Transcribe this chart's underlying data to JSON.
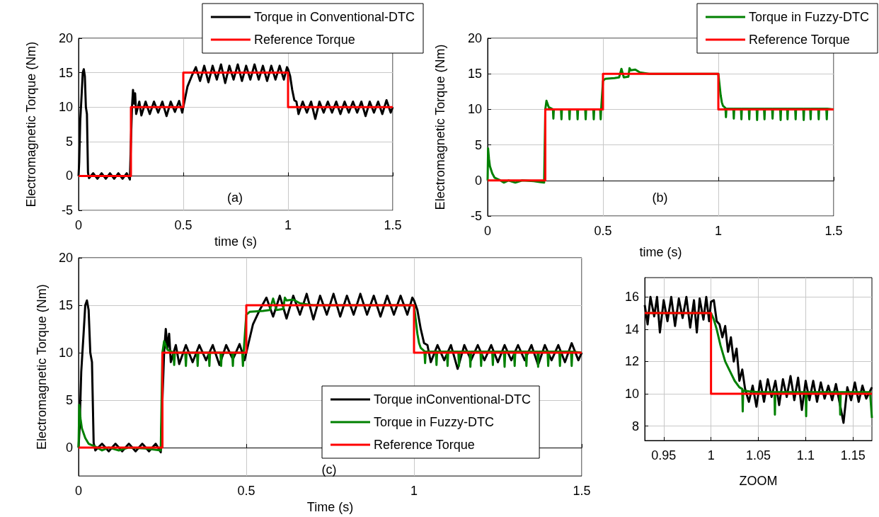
{
  "chart_data": [
    {
      "type": "line",
      "ylabel": "Electromagnetic Torque (Nm)",
      "xlabel": "time (s)",
      "annotations": [
        "(a)"
      ],
      "xlim": [
        0,
        1.5
      ],
      "ylim": [
        -5,
        20
      ],
      "xticks": [
        0,
        0.5,
        1,
        1.5
      ],
      "yticks": [
        -5,
        0,
        5,
        10,
        15,
        20
      ],
      "grid": true,
      "legend": "top right",
      "series": [
        {
          "name": "Torque in Conventional-DTC",
          "color": "#000000",
          "x": [
            0,
            0.003,
            0.008,
            0.015,
            0.02,
            0.025,
            0.03,
            0.035,
            0.04,
            0.045,
            0.05,
            0.07,
            0.09,
            0.11,
            0.13,
            0.15,
            0.17,
            0.19,
            0.21,
            0.23,
            0.245,
            0.25,
            0.255,
            0.26,
            0.265,
            0.27,
            0.275,
            0.29,
            0.3,
            0.32,
            0.34,
            0.36,
            0.38,
            0.4,
            0.42,
            0.44,
            0.46,
            0.48,
            0.495,
            0.5,
            0.52,
            0.54,
            0.56,
            0.58,
            0.6,
            0.62,
            0.64,
            0.66,
            0.68,
            0.7,
            0.72,
            0.74,
            0.76,
            0.78,
            0.8,
            0.82,
            0.84,
            0.86,
            0.88,
            0.9,
            0.92,
            0.94,
            0.96,
            0.98,
            0.995,
            1,
            1.01,
            1.02,
            1.03,
            1.04,
            1.05,
            1.07,
            1.09,
            1.11,
            1.13,
            1.15,
            1.17,
            1.19,
            1.21,
            1.23,
            1.25,
            1.27,
            1.29,
            1.31,
            1.33,
            1.35,
            1.37,
            1.39,
            1.41,
            1.43,
            1.45,
            1.47,
            1.49,
            1.5
          ],
          "values": [
            0,
            2,
            8,
            12,
            15,
            15.5,
            14.5,
            10,
            9,
            0.5,
            -0.3,
            0.4,
            -0.4,
            0.4,
            -0.4,
            0.4,
            -0.4,
            0.4,
            -0.4,
            0.4,
            -0.5,
            5,
            10,
            12.5,
            10.5,
            12,
            9,
            10.8,
            8.8,
            10.8,
            9,
            10.8,
            9.2,
            10.8,
            8.7,
            10.8,
            9.3,
            10.9,
            9.2,
            10,
            13,
            14.5,
            15.8,
            13.8,
            16,
            13.6,
            16,
            14,
            16.2,
            13.5,
            16,
            14,
            16.2,
            13.8,
            16,
            14,
            16.2,
            14,
            16,
            13.8,
            16,
            14,
            16,
            14,
            15.8,
            15.5,
            14.5,
            12.5,
            11,
            10.8,
            9,
            10.8,
            9.2,
            10.8,
            8.3,
            10.8,
            9.2,
            10.8,
            9.2,
            10.8,
            9,
            10.8,
            9.2,
            10.8,
            9.2,
            10.8,
            8.7,
            10.8,
            9.2,
            10.8,
            9,
            11,
            9.2,
            10
          ]
        },
        {
          "name": "Reference Torque",
          "color": "#ff0000",
          "x": [
            0,
            0.25,
            0.25,
            0.5,
            0.5,
            1,
            1,
            1.5
          ],
          "values": [
            0,
            0,
            10,
            10,
            15,
            15,
            10,
            10
          ]
        }
      ]
    },
    {
      "type": "line",
      "ylabel": "Electromagnetic Torque (Nm)",
      "xlabel": "time (s)",
      "annotations": [
        "(b)"
      ],
      "xlim": [
        0,
        1.5
      ],
      "ylim": [
        -5,
        20
      ],
      "xticks": [
        0,
        0.5,
        1,
        1.5
      ],
      "yticks": [
        -5,
        0,
        5,
        10,
        15,
        20
      ],
      "grid": true,
      "legend": "top right",
      "series": [
        {
          "name": "Torque in Fuzzy-DTC",
          "color": "#008000",
          "x": [
            0,
            0.002,
            0.006,
            0.01,
            0.02,
            0.03,
            0.05,
            0.07,
            0.09,
            0.12,
            0.15,
            0.2,
            0.245,
            0.25,
            0.255,
            0.265,
            0.283,
            0.285,
            0.287,
            0.318,
            0.32,
            0.322,
            0.353,
            0.355,
            0.357,
            0.388,
            0.39,
            0.392,
            0.423,
            0.425,
            0.427,
            0.458,
            0.46,
            0.462,
            0.488,
            0.49,
            0.492,
            0.5,
            0.51,
            0.55,
            0.57,
            0.58,
            0.59,
            0.61,
            0.615,
            0.62,
            0.64,
            0.66,
            0.68,
            0.7,
            1,
            1.005,
            1.01,
            1.015,
            1.02,
            1.03,
            1.031,
            1.033,
            1.035,
            1.065,
            1.067,
            1.069,
            1.098,
            1.1,
            1.102,
            1.132,
            1.134,
            1.136,
            1.166,
            1.168,
            1.17,
            1.198,
            1.2,
            1.202,
            1.233,
            1.235,
            1.237,
            1.268,
            1.27,
            1.272,
            1.298,
            1.3,
            1.302,
            1.333,
            1.335,
            1.337,
            1.368,
            1.37,
            1.372,
            1.398,
            1.4,
            1.402,
            1.433,
            1.435,
            1.437,
            1.468,
            1.47,
            1.472,
            1.5
          ],
          "values": [
            0,
            4.5,
            3,
            2,
            1,
            0.4,
            0.1,
            -0.3,
            0,
            -0.3,
            0,
            -0.1,
            -0.3,
            10,
            11.2,
            10.3,
            10,
            8.7,
            10,
            10,
            8.6,
            10,
            10,
            8.6,
            10,
            10,
            8.6,
            10,
            10,
            8.6,
            10,
            10,
            8.6,
            10,
            10,
            8.6,
            10,
            14,
            14.3,
            14.4,
            14.5,
            15.7,
            14.5,
            14.6,
            15.8,
            15.5,
            15.6,
            15.2,
            15.1,
            15,
            15,
            13.5,
            12,
            11,
            10.5,
            10.2,
            10.1,
            8.9,
            10.1,
            10.1,
            8.7,
            10.1,
            10.1,
            8.6,
            10.1,
            10.1,
            8.6,
            10.1,
            10.1,
            8.5,
            10.1,
            10.1,
            8.6,
            10.1,
            10.1,
            8.7,
            10.1,
            10.1,
            8.5,
            10.1,
            10.1,
            8.6,
            10.1,
            10.1,
            8.6,
            10.1,
            10.1,
            8.5,
            10.1,
            10.1,
            8.6,
            10.1,
            10.1,
            8.6,
            10.1,
            10.1,
            8.6,
            10.1,
            10
          ]
        },
        {
          "name": "Reference Torque",
          "color": "#ff0000",
          "x": [
            0,
            0.25,
            0.25,
            0.5,
            0.5,
            1,
            1,
            1.5
          ],
          "values": [
            0,
            0,
            10,
            10,
            15,
            15,
            10,
            10
          ]
        }
      ]
    },
    {
      "type": "line",
      "ylabel": "Electromagnetic Torque (Nm)",
      "xlabel": "Time (s)",
      "annotations": [
        "(c)"
      ],
      "xlim": [
        0,
        1.5
      ],
      "ylim": [
        -3,
        20
      ],
      "xticks": [
        0,
        0.5,
        1,
        1.5
      ],
      "yticks": [
        0,
        5,
        10,
        15,
        20
      ],
      "grid": true,
      "legend": "bottom right",
      "series": [
        {
          "name": "Torque inConventional-DTC",
          "color": "#000000",
          "x": [
            0,
            0.003,
            0.008,
            0.015,
            0.02,
            0.025,
            0.03,
            0.035,
            0.04,
            0.045,
            0.05,
            0.07,
            0.09,
            0.11,
            0.13,
            0.15,
            0.17,
            0.19,
            0.21,
            0.23,
            0.245,
            0.25,
            0.255,
            0.26,
            0.265,
            0.27,
            0.275,
            0.29,
            0.3,
            0.32,
            0.34,
            0.36,
            0.38,
            0.4,
            0.42,
            0.44,
            0.46,
            0.48,
            0.495,
            0.5,
            0.52,
            0.54,
            0.56,
            0.58,
            0.6,
            0.62,
            0.64,
            0.66,
            0.68,
            0.7,
            0.72,
            0.74,
            0.76,
            0.78,
            0.8,
            0.82,
            0.84,
            0.86,
            0.88,
            0.9,
            0.92,
            0.94,
            0.96,
            0.98,
            0.995,
            1,
            1.01,
            1.02,
            1.03,
            1.04,
            1.05,
            1.07,
            1.09,
            1.11,
            1.13,
            1.15,
            1.17,
            1.19,
            1.21,
            1.23,
            1.25,
            1.27,
            1.29,
            1.31,
            1.33,
            1.35,
            1.37,
            1.39,
            1.41,
            1.43,
            1.45,
            1.47,
            1.49,
            1.5
          ],
          "values": [
            0,
            2,
            8,
            12,
            15,
            15.5,
            14.5,
            10,
            9,
            0.5,
            -0.3,
            0.4,
            -0.4,
            0.4,
            -0.4,
            0.4,
            -0.4,
            0.4,
            -0.4,
            0.4,
            -0.5,
            5,
            10,
            12.5,
            10.5,
            12,
            9,
            10.8,
            8.8,
            10.8,
            9,
            10.8,
            9.2,
            10.8,
            8.7,
            10.8,
            9.3,
            10.9,
            9.2,
            10,
            13,
            14.5,
            15.8,
            13.8,
            16,
            13.6,
            16,
            14,
            16.2,
            13.5,
            16,
            14,
            16.2,
            13.8,
            16,
            14,
            16.2,
            14,
            16,
            13.8,
            16,
            14,
            16,
            14,
            15.8,
            15.5,
            14.5,
            12.5,
            11,
            10.8,
            9,
            10.8,
            9.2,
            10.8,
            8.3,
            10.8,
            9.2,
            10.8,
            9.2,
            10.8,
            9,
            10.8,
            9.2,
            10.8,
            9.2,
            10.8,
            8.7,
            10.8,
            9.2,
            10.8,
            9,
            11,
            9.2,
            10
          ]
        },
        {
          "name": "Torque in Fuzzy-DTC",
          "color": "#008000",
          "x": [
            0,
            0.002,
            0.006,
            0.01,
            0.02,
            0.03,
            0.05,
            0.07,
            0.09,
            0.12,
            0.15,
            0.2,
            0.245,
            0.25,
            0.255,
            0.265,
            0.283,
            0.285,
            0.287,
            0.318,
            0.32,
            0.322,
            0.353,
            0.355,
            0.357,
            0.388,
            0.39,
            0.392,
            0.423,
            0.425,
            0.427,
            0.458,
            0.46,
            0.462,
            0.488,
            0.49,
            0.492,
            0.5,
            0.51,
            0.55,
            0.57,
            0.58,
            0.59,
            0.61,
            0.615,
            0.62,
            0.64,
            0.66,
            0.68,
            0.7,
            1,
            1.005,
            1.01,
            1.015,
            1.02,
            1.03,
            1.031,
            1.033,
            1.035,
            1.065,
            1.067,
            1.069,
            1.098,
            1.1,
            1.102,
            1.132,
            1.134,
            1.136,
            1.166,
            1.168,
            1.17,
            1.198,
            1.2,
            1.202,
            1.233,
            1.235,
            1.237,
            1.268,
            1.27,
            1.272,
            1.298,
            1.3,
            1.302,
            1.333,
            1.335,
            1.337,
            1.368,
            1.37,
            1.372,
            1.398,
            1.4,
            1.402,
            1.433,
            1.435,
            1.437,
            1.468,
            1.47,
            1.472,
            1.5
          ],
          "values": [
            0,
            4.5,
            3,
            2,
            1,
            0.4,
            0.1,
            -0.3,
            0,
            -0.3,
            0,
            -0.1,
            -0.3,
            10,
            11.2,
            10.3,
            10,
            8.7,
            10,
            10,
            8.6,
            10,
            10,
            8.6,
            10,
            10,
            8.6,
            10,
            10,
            8.6,
            10,
            10,
            8.6,
            10,
            10,
            8.6,
            10,
            14,
            14.3,
            14.4,
            14.5,
            15.7,
            14.5,
            14.6,
            15.8,
            15.5,
            15.6,
            15.2,
            15.1,
            15,
            15,
            13.5,
            12,
            11,
            10.5,
            10.2,
            10.1,
            8.9,
            10.1,
            10.1,
            8.7,
            10.1,
            10.1,
            8.6,
            10.1,
            10.1,
            8.6,
            10.1,
            10.1,
            8.5,
            10.1,
            10.1,
            8.6,
            10.1,
            10.1,
            8.7,
            10.1,
            10.1,
            8.5,
            10.1,
            10.1,
            8.6,
            10.1,
            10.1,
            8.6,
            10.1,
            10.1,
            8.5,
            10.1,
            10.1,
            8.6,
            10.1,
            10.1,
            8.6,
            10.1,
            10.1,
            8.6,
            10.1,
            10
          ]
        },
        {
          "name": "Reference Torque",
          "color": "#ff0000",
          "x": [
            0,
            0.25,
            0.25,
            0.5,
            0.5,
            1,
            1,
            1.5
          ],
          "values": [
            0,
            0,
            10,
            10,
            15,
            15,
            10,
            10
          ]
        }
      ]
    },
    {
      "type": "line",
      "xlabel": "ZOOM",
      "xlim": [
        0.93,
        1.17
      ],
      "ylim": [
        7.1,
        17.2
      ],
      "xticks": [
        0.95,
        1,
        1.05,
        1.1,
        1.15
      ],
      "yticks": [
        8,
        10,
        12,
        14,
        16
      ],
      "grid": true,
      "series": [
        {
          "color": "#000000",
          "x": [
            0.93,
            0.933,
            0.936,
            0.94,
            0.943,
            0.946,
            0.95,
            0.954,
            0.958,
            0.962,
            0.966,
            0.97,
            0.974,
            0.978,
            0.982,
            0.985,
            0.988,
            0.992,
            0.995,
            0.998,
            1,
            1.003,
            1.006,
            1.009,
            1.012,
            1.015,
            1.018,
            1.021,
            1.024,
            1.027,
            1.03,
            1.033,
            1.036,
            1.04,
            1.044,
            1.048,
            1.052,
            1.056,
            1.06,
            1.064,
            1.068,
            1.072,
            1.076,
            1.08,
            1.084,
            1.088,
            1.092,
            1.096,
            1.1,
            1.104,
            1.108,
            1.112,
            1.116,
            1.12,
            1.124,
            1.128,
            1.132,
            1.136,
            1.14,
            1.144,
            1.148,
            1.152,
            1.156,
            1.16,
            1.164,
            1.17
          ],
          "values": [
            15.5,
            14.3,
            16,
            14.8,
            16,
            13.8,
            15.8,
            14.5,
            16,
            14.2,
            15.9,
            14.7,
            16,
            14.1,
            15.8,
            13.8,
            15.9,
            14.6,
            16,
            14.5,
            15.7,
            15.8,
            14.5,
            14.3,
            13.5,
            14.2,
            12.6,
            13.5,
            12,
            12.8,
            10.8,
            11.5,
            10.3,
            9.5,
            10.5,
            9.2,
            10.8,
            9.5,
            10.9,
            9.8,
            10.8,
            9.3,
            10.9,
            9.8,
            11.1,
            9.6,
            11,
            9,
            10.8,
            9.6,
            10.8,
            9.5,
            10.7,
            9.7,
            10.5,
            9.6,
            10.6,
            9.4,
            8.2,
            10.4,
            9.6,
            10.7,
            9.5,
            10.5,
            9.7,
            10.4
          ]
        },
        {
          "color": "#008000",
          "x": [
            0.93,
            1,
            1.003,
            1.006,
            1.01,
            1.015,
            1.02,
            1.025,
            1.03,
            1.033,
            1.0335,
            1.034,
            1.04,
            1.05,
            1.067,
            1.0675,
            1.068,
            1.1,
            1.1005,
            1.101,
            1.136,
            1.1365,
            1.137,
            1.168,
            1.17
          ],
          "values": [
            15,
            15,
            14.6,
            14,
            13,
            12,
            11.4,
            10.8,
            10.4,
            10.3,
            8.9,
            10.2,
            10.15,
            10.1,
            10.1,
            8.7,
            10.1,
            10.1,
            8.6,
            10.1,
            10.1,
            8.7,
            10.1,
            10.1,
            8.5
          ]
        },
        {
          "color": "#ff0000",
          "x": [
            0.93,
            1,
            1,
            1.17
          ],
          "values": [
            15,
            15,
            10,
            10
          ]
        }
      ]
    }
  ]
}
